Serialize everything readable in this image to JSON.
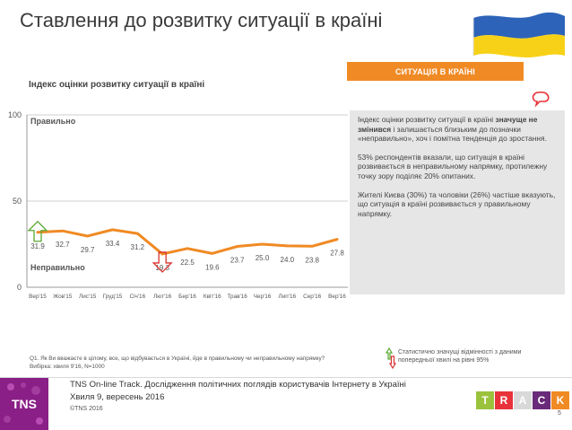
{
  "page": {
    "title": "Ставлення до розвитку ситуації в країні",
    "badge": "СИТУАЦІЯ В КРАЇНІ",
    "subtitle": "Індекс оцінки розвитку ситуації в країні"
  },
  "info_box": {
    "p1_a": "Індекс оцінки розвитку ситуації в країні ",
    "p1_bold": "значуще не змінився",
    "p1_b": " і залишається близьким до позначки «неправильно», хоч і помітна тенденція до зростання.",
    "p2": "53% респондентів вказали, що ситуація в країні розвивається в неправильному напрямку, протилежну точку зору поділяє 20% опитаних.",
    "p3": "Жителі Києва (30%) та чоловіки (26%) частіше вказують, що ситуація в країні розвивається у правильному напрямку."
  },
  "chart_data": {
    "type": "line",
    "title": "Індекс оцінки розвитку ситуації в країні",
    "categories": [
      "Вер'15",
      "Жов'15",
      "Лис'15",
      "Груд'15",
      "Січ'16",
      "Лют'16",
      "Бер'16",
      "Квіт'16",
      "Трав'16",
      "Чер'16",
      "Лип'16",
      "Сер'16",
      "Вер'16"
    ],
    "series": [
      {
        "name": "Індекс",
        "values": [
          31.9,
          32.7,
          29.7,
          33.4,
          31.2,
          19.3,
          22.5,
          19.6,
          23.7,
          25.0,
          24.0,
          23.8,
          27.8
        ]
      }
    ],
    "value_labels": [
      "31.9",
      "32.7",
      "29.7",
      "33.4",
      "31.2",
      "19.3",
      "22.5",
      "19.6",
      "23.7",
      "25.0",
      "24.0",
      "23.8",
      "27.8"
    ],
    "ylim": [
      0,
      100
    ],
    "yticks": [
      0,
      50,
      100
    ],
    "grid": true,
    "top_zone_label": "Правильно",
    "bottom_zone_label": "Неправильно",
    "significant_up_index": 0,
    "significant_down_index": 5,
    "line_color": "#f08a24"
  },
  "note": {
    "line1": "Q1. Як Ви вважаєте в цілому, все, що відбувається в Україні, йде в правильному чи неправильному напрямку?",
    "line2": "Вибірка: хвиля 9'16, N=1000"
  },
  "legend": {
    "text": "Статистично значущі відмінності з даними попередньої хвилі на рівні 95%"
  },
  "footer": {
    "line1": "TNS On-line Track. Дослідження політичних поглядів користувачів Інтернету в Україні",
    "line2": "Хвиля 9, вересень 2016",
    "line3": "©TNS 2016",
    "logo": "TNS",
    "track_letters": [
      "T",
      "R",
      "A",
      "C",
      "K"
    ],
    "track_colors": [
      "#9bc23c",
      "#e8323a",
      "#d9d9d9",
      "#6a2a7a",
      "#f08a24"
    ],
    "page_number": "5"
  },
  "colors": {
    "accent": "#f08a24",
    "up_arrow": "#5aa833",
    "down_arrow": "#d9322e",
    "flag_blue": "#2d63b8",
    "flag_yellow": "#f7d117"
  }
}
